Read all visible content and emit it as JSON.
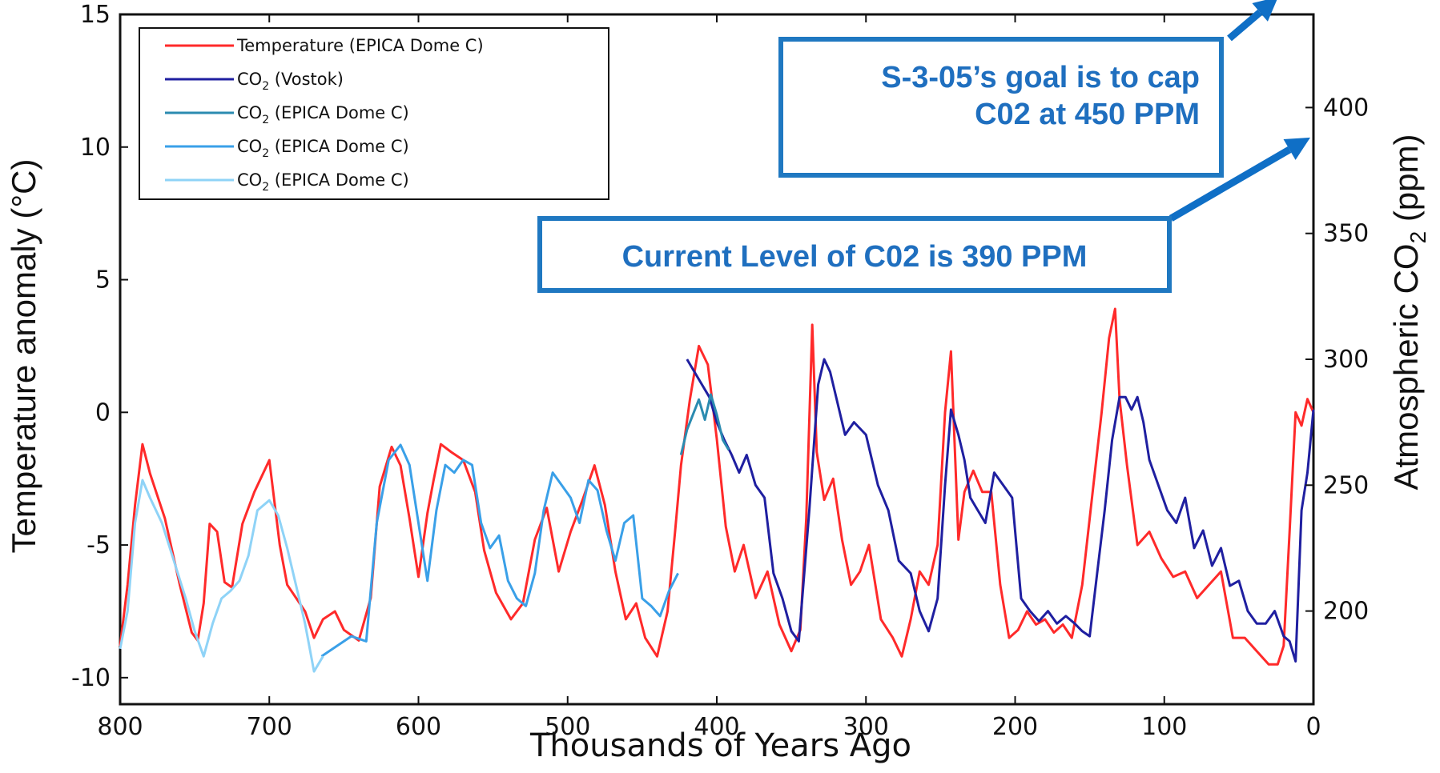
{
  "chart_data": {
    "type": "line",
    "xlabel": "Thousands of Years Ago",
    "ylabel_left": "Temperature anomaly (°C)",
    "ylabel_right_prefix": "Atmospheric CO",
    "ylabel_right_subscript": "2",
    "ylabel_right_suffix": " (ppm)",
    "xlim": [
      800,
      0
    ],
    "ylim_left": [
      -11,
      15
    ],
    "ylim_right": [
      163,
      437
    ],
    "x_ticks": [
      "800",
      "700",
      "600",
      "500",
      "400",
      "300",
      "200",
      "100",
      "0"
    ],
    "y_left_ticks": [
      "15",
      "10",
      "5",
      "0",
      "-5",
      "-10"
    ],
    "y_right_ticks": [
      "400",
      "350",
      "300",
      "250",
      "200"
    ],
    "legend": {
      "placement": "top-left",
      "entries": [
        {
          "prefix": "Temperature",
          "sub": "",
          "suffix": " (EPICA Dome C)",
          "color": "#ff2a2a"
        },
        {
          "prefix": "CO",
          "sub": "2",
          "suffix": " (Vostok)",
          "color": "#1f1fa0"
        },
        {
          "prefix": "CO",
          "sub": "2",
          "suffix": " (EPICA Dome C)",
          "color": "#2b8bb0"
        },
        {
          "prefix": "CO",
          "sub": "2",
          "suffix": " (EPICA Dome C)",
          "color": "#3aa0e8"
        },
        {
          "prefix": "CO",
          "sub": "2",
          "suffix": " (EPICA Dome C)",
          "color": "#8fd3f7"
        }
      ]
    },
    "series": [
      {
        "name": "Temperature (EPICA Dome C)",
        "axis": "left",
        "color": "#ff2a2a",
        "x": [
          800,
          795,
          790,
          785,
          780,
          770,
          760,
          752,
          748,
          744,
          740,
          735,
          730,
          725,
          718,
          710,
          700,
          693,
          688,
          682,
          676,
          670,
          664,
          656,
          650,
          640,
          632,
          626,
          618,
          612,
          606,
          600,
          594,
          590,
          585,
          578,
          570,
          562,
          556,
          548,
          538,
          530,
          522,
          514,
          506,
          498,
          490,
          482,
          475,
          468,
          461,
          454,
          448,
          440,
          433,
          428,
          424,
          418,
          412,
          406,
          400,
          394,
          388,
          382,
          374,
          366,
          358,
          350,
          344,
          340,
          336,
          333,
          328,
          322,
          316,
          310,
          304,
          298,
          290,
          282,
          276,
          270,
          264,
          258,
          252,
          247,
          243,
          238,
          234,
          228,
          222,
          216,
          210,
          204,
          198,
          192,
          186,
          180,
          174,
          168,
          162,
          155,
          148,
          142,
          137,
          133,
          130,
          125,
          118,
          110,
          102,
          94,
          86,
          78,
          70,
          62,
          54,
          46,
          38,
          30,
          24,
          20,
          16,
          12,
          8,
          4,
          0
        ],
        "y": [
          -8.8,
          -6.5,
          -3.5,
          -1.2,
          -2.3,
          -4.0,
          -6.5,
          -8.3,
          -8.6,
          -7.2,
          -4.2,
          -4.5,
          -6.4,
          -6.6,
          -4.2,
          -3.0,
          -1.8,
          -5.0,
          -6.5,
          -7.0,
          -7.5,
          -8.5,
          -7.8,
          -7.5,
          -8.2,
          -8.6,
          -7.0,
          -2.8,
          -1.3,
          -2.0,
          -4.0,
          -6.2,
          -3.8,
          -2.6,
          -1.2,
          -1.5,
          -1.8,
          -3.0,
          -5.2,
          -6.8,
          -7.8,
          -7.2,
          -4.8,
          -3.6,
          -6.0,
          -4.5,
          -3.3,
          -2.0,
          -3.5,
          -6.0,
          -7.8,
          -7.2,
          -8.5,
          -9.2,
          -7.5,
          -4.5,
          -2.0,
          0.5,
          2.5,
          1.8,
          -1.0,
          -4.3,
          -6.0,
          -5.0,
          -7.0,
          -6.0,
          -8.0,
          -9.0,
          -8.2,
          -4.0,
          3.3,
          -1.5,
          -3.3,
          -2.5,
          -4.8,
          -6.5,
          -6.0,
          -5.0,
          -7.8,
          -8.5,
          -9.2,
          -7.8,
          -6.0,
          -6.5,
          -5.0,
          0.0,
          2.3,
          -4.8,
          -3.0,
          -2.2,
          -3.0,
          -3.0,
          -6.5,
          -8.5,
          -8.2,
          -7.5,
          -8.0,
          -7.8,
          -8.3,
          -8.0,
          -8.5,
          -6.5,
          -3.0,
          0.0,
          2.8,
          3.9,
          0.5,
          -2.0,
          -5.0,
          -4.5,
          -5.5,
          -6.2,
          -6.0,
          -7.0,
          -6.5,
          -6.0,
          -8.5,
          -8.5,
          -9.0,
          -9.5,
          -9.5,
          -8.8,
          -4.5,
          0.0,
          -0.5,
          0.5,
          0.0
        ]
      },
      {
        "name": "CO2 (Vostok)",
        "axis": "right",
        "color": "#1f1fa0",
        "x": [
          420,
          410,
          405,
          400,
          395,
          390,
          385,
          380,
          374,
          368,
          362,
          356,
          350,
          345,
          338,
          332,
          328,
          324,
          320,
          314,
          308,
          300,
          292,
          285,
          278,
          270,
          264,
          258,
          252,
          247,
          243,
          238,
          234,
          230,
          225,
          220,
          214,
          208,
          202,
          196,
          190,
          184,
          178,
          172,
          166,
          160,
          155,
          150,
          145,
          140,
          135,
          130,
          126,
          122,
          118,
          114,
          110,
          104,
          98,
          92,
          86,
          80,
          74,
          68,
          62,
          56,
          50,
          44,
          38,
          32,
          26,
          20,
          16,
          12,
          8,
          4,
          0
        ],
        "y": [
          300,
          290,
          285,
          275,
          268,
          262,
          255,
          262,
          250,
          245,
          215,
          205,
          192,
          188,
          240,
          290,
          300,
          295,
          285,
          270,
          275,
          270,
          250,
          240,
          220,
          215,
          200,
          192,
          205,
          250,
          280,
          270,
          260,
          245,
          240,
          235,
          255,
          250,
          245,
          205,
          200,
          196,
          200,
          195,
          198,
          195,
          192,
          190,
          215,
          240,
          268,
          285,
          285,
          280,
          285,
          275,
          260,
          250,
          240,
          235,
          245,
          225,
          232,
          218,
          225,
          210,
          212,
          200,
          195,
          195,
          200,
          190,
          188,
          180,
          240,
          255,
          280
        ]
      },
      {
        "name": "CO2 (EPICA Dome C)",
        "axis": "right",
        "color": "#2b8bb0",
        "x": [
          424,
          420,
          416,
          412,
          408,
          404,
          400,
          396,
          392
        ],
        "y": [
          262,
          272,
          278,
          284,
          276,
          286,
          278,
          268,
          264
        ]
      },
      {
        "name": "CO2 (EPICA Dome C)",
        "axis": "right",
        "color": "#3aa0e8",
        "x": [
          665,
          655,
          645,
          635,
          628,
          620,
          612,
          606,
          600,
          594,
          588,
          582,
          576,
          570,
          564,
          558,
          552,
          546,
          540,
          534,
          528,
          522,
          516,
          510,
          504,
          498,
          492,
          486,
          480,
          474,
          468,
          462,
          456,
          450,
          444,
          438,
          432,
          426
        ],
        "y": [
          182,
          186,
          190,
          188,
          235,
          260,
          266,
          258,
          235,
          212,
          240,
          258,
          255,
          260,
          258,
          235,
          225,
          230,
          212,
          205,
          202,
          215,
          240,
          255,
          250,
          245,
          235,
          252,
          248,
          232,
          220,
          235,
          238,
          205,
          202,
          198,
          208,
          215
        ]
      },
      {
        "name": "CO2 (EPICA Dome C)",
        "axis": "right",
        "color": "#8fd3f7",
        "x": [
          800,
          795,
          790,
          785,
          780,
          772,
          764,
          756,
          750,
          744,
          738,
          732,
          726,
          720,
          714,
          708,
          700,
          694,
          688,
          682,
          676,
          670,
          664
        ],
        "y": [
          185,
          200,
          235,
          252,
          245,
          235,
          220,
          205,
          192,
          182,
          195,
          205,
          208,
          212,
          222,
          240,
          244,
          238,
          225,
          210,
          195,
          176,
          182
        ]
      }
    ],
    "annotations": [
      {
        "text_line1": "S-3-05’s goal is to cap",
        "text_line2": "C02 at 450 PPM",
        "arrow_to_ppm": 450
      },
      {
        "text": "Current Level of C02 is 390 PPM",
        "arrow_to_ppm": 390
      }
    ],
    "grid": false
  }
}
